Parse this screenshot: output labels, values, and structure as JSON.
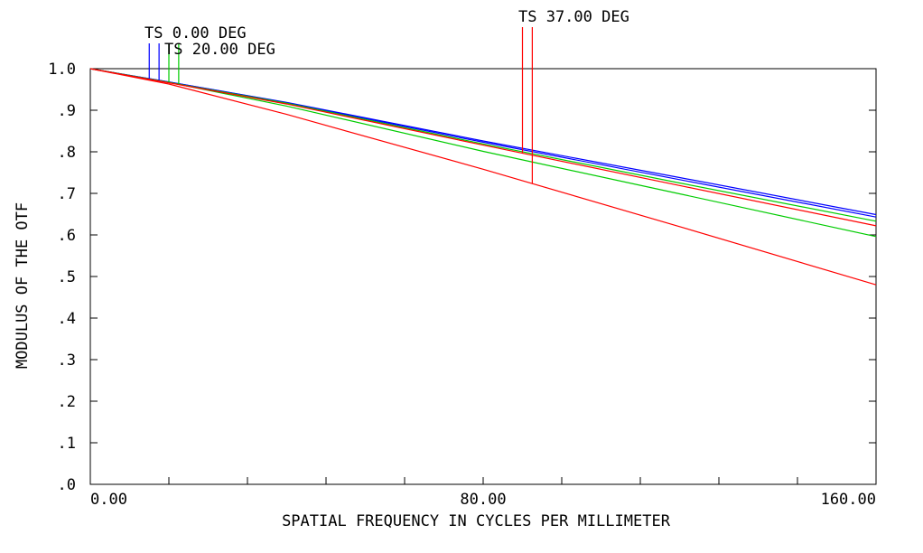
{
  "chart_data": {
    "type": "line",
    "title": "",
    "xlabel": "SPATIAL FREQUENCY IN CYCLES PER MILLIMETER",
    "ylabel": "MODULUS OF THE OTF",
    "xlim": [
      0,
      160
    ],
    "ylim": [
      0,
      1
    ],
    "x_tick_labels": [
      {
        "value": 0,
        "label": "0.00"
      },
      {
        "value": 80,
        "label": "80.00"
      },
      {
        "value": 160,
        "label": "160.00"
      }
    ],
    "x_minor_ticks": [
      16,
      32,
      48,
      64,
      96,
      112,
      128,
      144
    ],
    "y_tick_labels": [
      {
        "value": 0,
        "label": ".0"
      },
      {
        "value": 0.1,
        "label": ".1"
      },
      {
        "value": 0.2,
        "label": ".2"
      },
      {
        "value": 0.3,
        "label": ".3"
      },
      {
        "value": 0.4,
        "label": ".4"
      },
      {
        "value": 0.5,
        "label": ".5"
      },
      {
        "value": 0.6,
        "label": ".6"
      },
      {
        "value": 0.7,
        "label": ".7"
      },
      {
        "value": 0.8,
        "label": ".8"
      },
      {
        "value": 0.9,
        "label": ".9"
      },
      {
        "value": 1.0,
        "label": "1.0"
      }
    ],
    "grid": false,
    "series": [
      {
        "color": "#0000ff",
        "x": [
          0,
          16,
          40,
          80,
          120,
          160
        ],
        "y": [
          1.0,
          0.968,
          0.919,
          0.826,
          0.738,
          0.649
        ]
      },
      {
        "color": "#0000ff",
        "x": [
          0,
          16,
          40,
          80,
          120,
          160
        ],
        "y": [
          1.0,
          0.968,
          0.918,
          0.823,
          0.733,
          0.643
        ]
      },
      {
        "color": "#00cc00",
        "x": [
          0,
          16,
          40,
          80,
          120,
          160
        ],
        "y": [
          1.0,
          0.967,
          0.917,
          0.819,
          0.725,
          0.633
        ]
      },
      {
        "color": "#00cc00",
        "x": [
          0,
          16,
          40,
          80,
          120,
          160
        ],
        "y": [
          1.0,
          0.967,
          0.91,
          0.801,
          0.699,
          0.596
        ]
      },
      {
        "color": "#ff0000",
        "x": [
          0,
          16,
          40,
          80,
          120,
          160
        ],
        "y": [
          1.0,
          0.966,
          0.915,
          0.816,
          0.719,
          0.622
        ]
      },
      {
        "color": "#ff0000",
        "x": [
          0,
          16,
          40,
          80,
          120,
          160
        ],
        "y": [
          1.0,
          0.963,
          0.89,
          0.758,
          0.62,
          0.48
        ]
      }
    ],
    "annotations": [
      {
        "text": "TS 0.00 DEG",
        "color": "#0000ff",
        "markers_x": [
          12,
          14
        ]
      },
      {
        "text": "TS 20.00 DEG",
        "color": "#00cc00",
        "markers_x": [
          16,
          18
        ]
      },
      {
        "text": "TS 37.00 DEG",
        "color": "#ff0000",
        "markers_x": [
          88,
          90
        ]
      }
    ]
  }
}
